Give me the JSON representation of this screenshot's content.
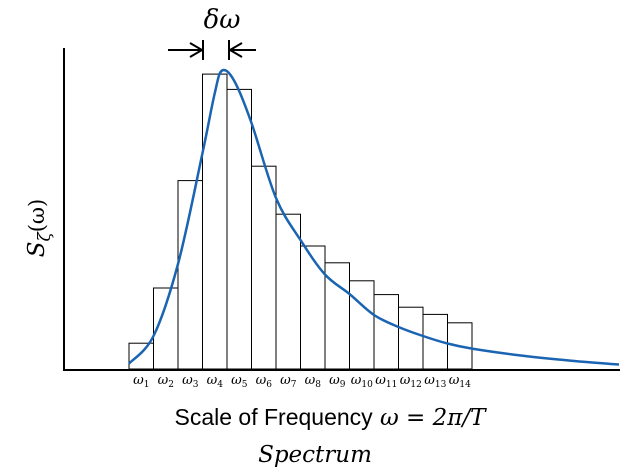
{
  "chart_data": {
    "type": "bar",
    "categories": [
      "ω1",
      "ω2",
      "ω3",
      "ω4",
      "ω5",
      "ω6",
      "ω7",
      "ω8",
      "ω9",
      "ω10",
      "ω11",
      "ω12",
      "ω13",
      "ω14"
    ],
    "tick_labels": [
      {
        "base": "ω",
        "sub": "1"
      },
      {
        "base": "ω",
        "sub": "2"
      },
      {
        "base": "ω",
        "sub": "3"
      },
      {
        "base": "ω",
        "sub": "4"
      },
      {
        "base": "ω",
        "sub": "5"
      },
      {
        "base": "ω",
        "sub": "6"
      },
      {
        "base": "ω",
        "sub": "7"
      },
      {
        "base": "ω",
        "sub": "8"
      },
      {
        "base": "ω",
        "sub": "9"
      },
      {
        "base": "ω",
        "sub": "10"
      },
      {
        "base": "ω",
        "sub": "11"
      },
      {
        "base": "ω",
        "sub": "12"
      },
      {
        "base": "ω",
        "sub": "13"
      },
      {
        "base": "ω",
        "sub": "14"
      }
    ],
    "values": [
      8.6,
      27.0,
      62.8,
      98.3,
      93.2,
      67.6,
      51.6,
      41.0,
      35.4,
      29.4,
      24.8,
      20.6,
      18.2,
      15.4
    ],
    "curve": {
      "x": [
        0,
        1,
        2,
        3,
        3.5,
        3.8,
        4.3,
        5,
        6,
        7,
        8,
        9,
        10,
        11,
        12,
        13,
        14,
        16,
        18,
        20
      ],
      "y": [
        1.8,
        11,
        35,
        72,
        92,
        99.5,
        96,
        82,
        57,
        43,
        31.5,
        25,
        18,
        14,
        11,
        8.5,
        6.8,
        4.5,
        2.8,
        1.5
      ]
    },
    "ylabel": {
      "base": "S",
      "sub": "ζ",
      "arg": "(ω)"
    },
    "xlabel": {
      "text": "Scale of Frequency",
      "formula": "ω = 2π/T"
    },
    "caption": "Spectrum",
    "annotation": "δω",
    "colors": {
      "curve": "#1a64b2",
      "bars": "#000000",
      "axes": "#000000"
    }
  }
}
